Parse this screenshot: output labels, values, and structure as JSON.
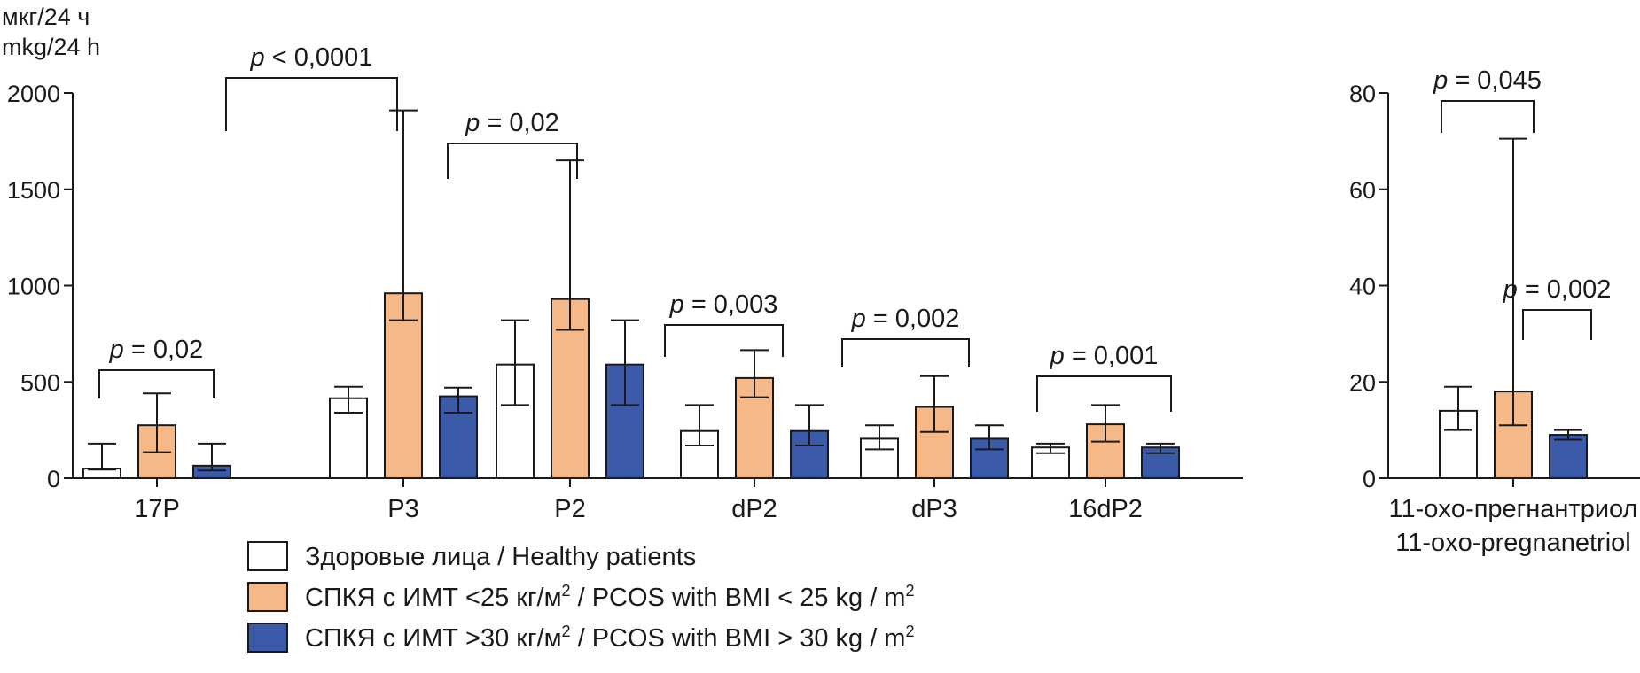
{
  "chart_data": [
    {
      "type": "bar",
      "ylabel_ru": "мкг/24 ч",
      "ylabel_en": "mkg/24 h",
      "ylim": [
        0,
        2000
      ],
      "yticks": [
        "0",
        "500",
        "1000",
        "1500",
        "2000"
      ],
      "categories": [
        "17P",
        "P3",
        "P2",
        "dP2",
        "dP3",
        "16dP2"
      ],
      "series": [
        {
          "name": "Здоровые лица / Healthy patients",
          "color": "#ffffff",
          "values": [
            50,
            415,
            590,
            245,
            205,
            160
          ],
          "err_low": [
            45,
            340,
            380,
            170,
            150,
            130
          ],
          "err_high": [
            180,
            475,
            820,
            380,
            275,
            180
          ]
        },
        {
          "name": "СПКЯ с ИМТ <25 кг/м2 / PCOS with BMI < 25 kg / m2",
          "color": "#f6b887",
          "values": [
            275,
            960,
            930,
            520,
            370,
            280
          ],
          "err_low": [
            135,
            820,
            770,
            420,
            240,
            190
          ],
          "err_high": [
            440,
            1910,
            1650,
            665,
            530,
            380
          ]
        },
        {
          "name": "СПКЯ с ИМТ >30 кг/м2 / PCOS with BMI > 30 kg / m2",
          "color": "#3b5aa9",
          "values": [
            65,
            425,
            590,
            245,
            205,
            160
          ],
          "err_low": [
            40,
            340,
            380,
            170,
            150,
            130
          ],
          "err_high": [
            180,
            470,
            820,
            380,
            275,
            180
          ]
        }
      ],
      "comparisons": [
        {
          "category": "17P",
          "from": 0,
          "to": 2,
          "label": "= 0,02"
        },
        {
          "category": "P3",
          "from": -1,
          "to": 1,
          "label": "< 0,0001"
        },
        {
          "category": "P2",
          "from": 0,
          "to": 1,
          "label": "= 0,02"
        },
        {
          "category": "dP2",
          "from": 0,
          "to": 2,
          "label": "= 0,003"
        },
        {
          "category": "dP3",
          "from": 0,
          "to": 2,
          "label": "= 0,002"
        },
        {
          "category": "16dP2",
          "from": 0,
          "to": 2,
          "label": "= 0,001"
        }
      ]
    },
    {
      "type": "bar",
      "ylim": [
        0,
        80
      ],
      "yticks": [
        "0",
        "20",
        "40",
        "60",
        "80"
      ],
      "categories": [
        "11-oxo-прегнантриол"
      ],
      "category_sublabel": "11-oxo-pregnanetriol",
      "series": [
        {
          "name": "Здоровые лица / Healthy patients",
          "color": "#ffffff",
          "values": [
            14
          ],
          "err_low": [
            10
          ],
          "err_high": [
            19
          ]
        },
        {
          "name": "СПКЯ с ИМТ <25 кг/м2 / PCOS with BMI < 25 kg / m2",
          "color": "#f6b887",
          "values": [
            18
          ],
          "err_low": [
            11
          ],
          "err_high": [
            70.5
          ]
        },
        {
          "name": "СПКЯ с ИМТ >30 кг/м2 / PCOS with BMI > 30 kg / m2",
          "color": "#3b5aa9",
          "values": [
            9
          ],
          "err_low": [
            8
          ],
          "err_high": [
            10
          ]
        }
      ],
      "comparisons": [
        {
          "from": 0,
          "to": 1,
          "label": "= 0,045"
        },
        {
          "from": 1,
          "to": 2,
          "label": "= 0,002"
        }
      ]
    }
  ],
  "p_symbol": "p",
  "legend": {
    "items": [
      {
        "name": "Здоровые лица / Healthy patients",
        "color": "#ffffff",
        "text_main": "Здоровые лица / Healthy patients",
        "sup1": "",
        "text_mid": "",
        "sup2": ""
      },
      {
        "name": "СПКЯ с ИМТ <25 кг/м2 / PCOS with BMI < 25 kg / m2",
        "color": "#f6b887",
        "text_main": "СПКЯ с ИМТ <25 кг/м",
        "sup1": "2",
        "text_mid": " / PCOS with BMI < 25 kg / m",
        "sup2": "2"
      },
      {
        "name": "СПКЯ с ИМТ >30 кг/м2 / PCOS with BMI > 30 kg / m2",
        "color": "#3b5aa9",
        "text_main": "СПКЯ с ИМТ >30 кг/м",
        "sup1": "2",
        "text_mid": " / PCOS with BMI > 30 kg / m",
        "sup2": "2"
      }
    ]
  }
}
